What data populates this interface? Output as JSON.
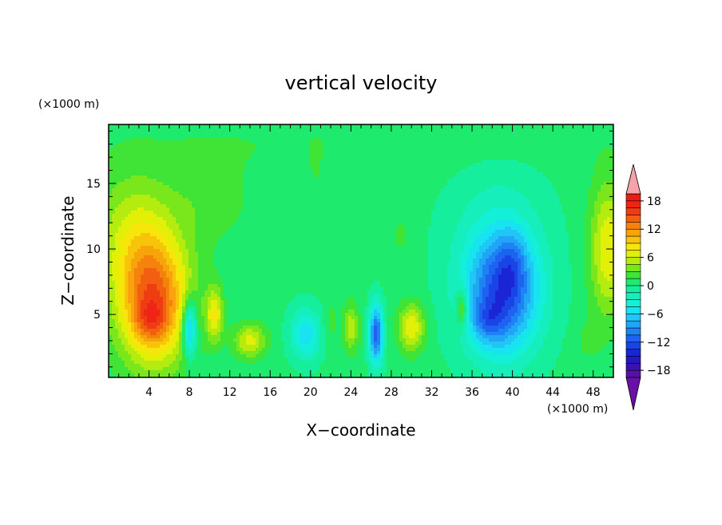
{
  "chart_data": {
    "type": "heatmap",
    "title": "vertical velocity",
    "xlabel": "X−coordinate",
    "ylabel": "Z−coordinate",
    "x_unit": "(×1000 m)",
    "y_unit": "(×1000 m)",
    "xlim": [
      0,
      50
    ],
    "ylim": [
      0.2,
      19.5
    ],
    "x_ticks": [
      4,
      8,
      12,
      16,
      20,
      24,
      28,
      32,
      36,
      40,
      44,
      48
    ],
    "y_ticks": [
      5,
      10,
      15
    ],
    "colorbar": {
      "levels": [
        -21,
        -19.5,
        -18,
        -16.5,
        -15,
        -13.5,
        -12,
        -10.5,
        -9,
        -7.5,
        -6,
        -4.5,
        -3,
        -1.5,
        0,
        1.5,
        3,
        4.5,
        6,
        7.5,
        9,
        10.5,
        12,
        13.5,
        15,
        16.5,
        18,
        19.5,
        21
      ],
      "tick_labels": [
        "18",
        "12",
        "6",
        "0",
        "−6",
        "−12",
        "−18"
      ],
      "tick_values": [
        18,
        12,
        6,
        0,
        -6,
        -12,
        -18
      ],
      "colors": [
        "#6a0fa8",
        "#5411a8",
        "#3a12b0",
        "#2418c0",
        "#1a26d6",
        "#1a45e6",
        "#1e63f0",
        "#1e82f5",
        "#22a5f7",
        "#20c6f5",
        "#18e3f0",
        "#14f0d8",
        "#16eebc",
        "#15ee9c",
        "#1eea6e",
        "#40e436",
        "#7ae61c",
        "#b4ec10",
        "#e2f008",
        "#f6e60a",
        "#f8c40a",
        "#f8a20c",
        "#f6820e",
        "#f45e10",
        "#f03c12",
        "#ee2414",
        "#ec1c14",
        "#f4a3a6"
      ]
    },
    "field_background": 0.5,
    "features": [
      {
        "x": 4.5,
        "z": 6.0,
        "sx": 3.5,
        "sz": 4.8,
        "w": 13
      },
      {
        "x": 4.2,
        "z": 4.5,
        "sx": 1.6,
        "sz": 1.6,
        "w": 4
      },
      {
        "x": 2.5,
        "z": 11.0,
        "sx": 4.0,
        "sz": 5.0,
        "w": 5
      },
      {
        "x": 8.0,
        "z": 4.0,
        "sx": 0.7,
        "sz": 2.2,
        "w": -10
      },
      {
        "x": 10.5,
        "z": 5.0,
        "sx": 0.8,
        "sz": 2.0,
        "w": 7
      },
      {
        "x": 14.0,
        "z": 3.0,
        "sx": 1.6,
        "sz": 1.3,
        "w": 6
      },
      {
        "x": 19.5,
        "z": 3.5,
        "sx": 1.5,
        "sz": 2.0,
        "w": -6
      },
      {
        "x": 22.0,
        "z": 4.5,
        "sx": 0.6,
        "sz": 1.5,
        "w": 2
      },
      {
        "x": 24.0,
        "z": 4.0,
        "sx": 0.8,
        "sz": 1.8,
        "w": 5
      },
      {
        "x": 26.5,
        "z": 3.5,
        "sx": 0.7,
        "sz": 2.3,
        "w": -12
      },
      {
        "x": 30.0,
        "z": 4.0,
        "sx": 1.3,
        "sz": 1.8,
        "w": 7
      },
      {
        "x": 35.0,
        "z": 5.5,
        "sx": 0.6,
        "sz": 1.5,
        "w": 6
      },
      {
        "x": 39.0,
        "z": 6.5,
        "sx": 3.5,
        "sz": 4.5,
        "w": -11
      },
      {
        "x": 40.0,
        "z": 9.0,
        "sx": 1.5,
        "sz": 2.5,
        "w": -3
      },
      {
        "x": 37.5,
        "z": 4.5,
        "sx": 1.6,
        "sz": 1.5,
        "w": -4
      },
      {
        "x": 38.5,
        "z": 9.5,
        "sx": 5.0,
        "sz": 7.0,
        "w": -3
      },
      {
        "x": 49.5,
        "z": 10.0,
        "sx": 1.8,
        "sz": 5.0,
        "w": 7
      },
      {
        "x": 47.5,
        "z": 3.0,
        "sx": 1.2,
        "sz": 1.5,
        "w": 1.5
      },
      {
        "x": 10.0,
        "z": 14.0,
        "sx": 4.0,
        "sz": 3.5,
        "w": 2
      },
      {
        "x": 20.5,
        "z": 16.5,
        "sx": 0.4,
        "sz": 1.2,
        "w": 2
      },
      {
        "x": 29.0,
        "z": 11.0,
        "sx": 1.0,
        "sz": 1.5,
        "w": 1.5
      },
      {
        "x": 25.0,
        "z": 18.0,
        "sx": 25.0,
        "sz": 2.0,
        "w": 1.0
      }
    ]
  }
}
